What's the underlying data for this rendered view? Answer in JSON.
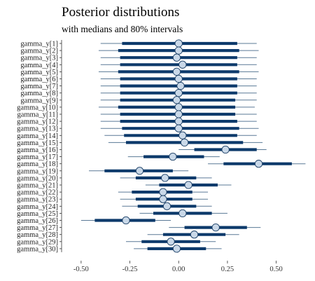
{
  "chart_data": {
    "type": "interval",
    "title": "Posterior distributions",
    "subtitle": "with medians and 80% intervals",
    "xlabel": "",
    "ylabel": "",
    "xlim": [
      -0.6,
      0.67
    ],
    "xticks": [
      -0.5,
      -0.25,
      0.0,
      0.25,
      0.5
    ],
    "xtick_labels": [
      "-0.50",
      "-0.25",
      "0.00",
      "0.25",
      "0.50"
    ],
    "grid": false,
    "colors": {
      "interval": "#0d3a6b",
      "outer_line": "#5a7996",
      "point_fill": "#c9d8e8",
      "point_stroke": "#1b3f66",
      "axis": "#333333"
    },
    "series": [
      {
        "label": "gamma_y[1]",
        "median": 0.0,
        "low80": -0.29,
        "high80": 0.3,
        "low95": -0.4,
        "high95": 0.4
      },
      {
        "label": "gamma_y[2]",
        "median": 0.0,
        "low80": -0.31,
        "high80": 0.31,
        "low95": -0.41,
        "high95": 0.41
      },
      {
        "label": "gamma_y[3]",
        "median": -0.01,
        "low80": -0.3,
        "high80": 0.3,
        "low95": -0.4,
        "high95": 0.4
      },
      {
        "label": "gamma_y[4]",
        "median": 0.02,
        "low80": -0.3,
        "high80": 0.3,
        "low95": -0.4,
        "high95": 0.4
      },
      {
        "label": "gamma_y[5]",
        "median": -0.01,
        "low80": -0.31,
        "high80": 0.31,
        "low95": -0.41,
        "high95": 0.41
      },
      {
        "label": "gamma_y[6]",
        "median": 0.0,
        "low80": -0.3,
        "high80": 0.3,
        "low95": -0.4,
        "high95": 0.4
      },
      {
        "label": "gamma_y[7]",
        "median": 0.01,
        "low80": -0.3,
        "high80": 0.3,
        "low95": -0.4,
        "high95": 0.4
      },
      {
        "label": "gamma_y[8]",
        "median": 0.0,
        "low80": -0.3,
        "high80": 0.3,
        "low95": -0.4,
        "high95": 0.4
      },
      {
        "label": "gamma_y[9]",
        "median": -0.01,
        "low80": -0.3,
        "high80": 0.29,
        "low95": -0.4,
        "high95": 0.4
      },
      {
        "label": "gamma_y[10]",
        "median": 0.0,
        "low80": -0.31,
        "high80": 0.29,
        "low95": -0.41,
        "high95": 0.39
      },
      {
        "label": "gamma_y[11]",
        "median": 0.0,
        "low80": -0.3,
        "high80": 0.29,
        "low95": -0.4,
        "high95": 0.4
      },
      {
        "label": "gamma_y[12]",
        "median": 0.0,
        "low80": -0.3,
        "high80": 0.3,
        "low95": -0.4,
        "high95": 0.4
      },
      {
        "label": "gamma_y[13]",
        "median": 0.0,
        "low80": -0.29,
        "high80": 0.31,
        "low95": -0.4,
        "high95": 0.41
      },
      {
        "label": "gamma_y[14]",
        "median": 0.02,
        "low80": -0.28,
        "high80": 0.3,
        "low95": -0.38,
        "high95": 0.4
      },
      {
        "label": "gamma_y[15]",
        "median": 0.03,
        "low80": -0.27,
        "high80": 0.33,
        "low95": -0.36,
        "high95": 0.43
      },
      {
        "label": "gamma_y[16]",
        "median": 0.24,
        "low80": 0.08,
        "high80": 0.4,
        "low95": 0.0,
        "high95": 0.45
      },
      {
        "label": "gamma_y[17]",
        "median": -0.03,
        "low80": -0.18,
        "high80": 0.13,
        "low95": -0.26,
        "high95": 0.21
      },
      {
        "label": "gamma_y[18]",
        "median": 0.41,
        "low80": 0.23,
        "high80": 0.58,
        "low95": 0.15,
        "high95": 0.65
      },
      {
        "label": "gamma_y[19]",
        "median": -0.2,
        "low80": -0.38,
        "high80": -0.03,
        "low95": -0.46,
        "high95": 0.05
      },
      {
        "label": "gamma_y[20]",
        "median": -0.07,
        "low80": -0.22,
        "high80": 0.09,
        "low95": -0.3,
        "high95": 0.17
      },
      {
        "label": "gamma_y[21]",
        "median": 0.05,
        "low80": -0.1,
        "high80": 0.2,
        "low95": -0.17,
        "high95": 0.27
      },
      {
        "label": "gamma_y[22]",
        "median": -0.08,
        "low80": -0.24,
        "high80": 0.07,
        "low95": -0.31,
        "high95": 0.15
      },
      {
        "label": "gamma_y[23]",
        "median": -0.08,
        "low80": -0.22,
        "high80": 0.07,
        "low95": -0.3,
        "high95": 0.15
      },
      {
        "label": "gamma_y[24]",
        "median": -0.06,
        "low80": -0.21,
        "high80": 0.09,
        "low95": -0.29,
        "high95": 0.17
      },
      {
        "label": "gamma_y[25]",
        "median": 0.02,
        "low80": -0.13,
        "high80": 0.17,
        "low95": -0.2,
        "high95": 0.25
      },
      {
        "label": "gamma_y[26]",
        "median": -0.27,
        "low80": -0.43,
        "high80": -0.12,
        "low95": -0.5,
        "high95": -0.04
      },
      {
        "label": "gamma_y[27]",
        "median": 0.19,
        "low80": 0.03,
        "high80": 0.35,
        "low95": -0.05,
        "high95": 0.42
      },
      {
        "label": "gamma_y[28]",
        "median": 0.08,
        "low80": -0.08,
        "high80": 0.24,
        "low95": -0.16,
        "high95": 0.31
      },
      {
        "label": "gamma_y[29]",
        "median": -0.04,
        "low80": -0.19,
        "high80": 0.11,
        "low95": -0.27,
        "high95": 0.19
      },
      {
        "label": "gamma_y[30]",
        "median": -0.01,
        "low80": -0.16,
        "high80": 0.14,
        "low95": -0.23,
        "high95": 0.22
      }
    ]
  }
}
